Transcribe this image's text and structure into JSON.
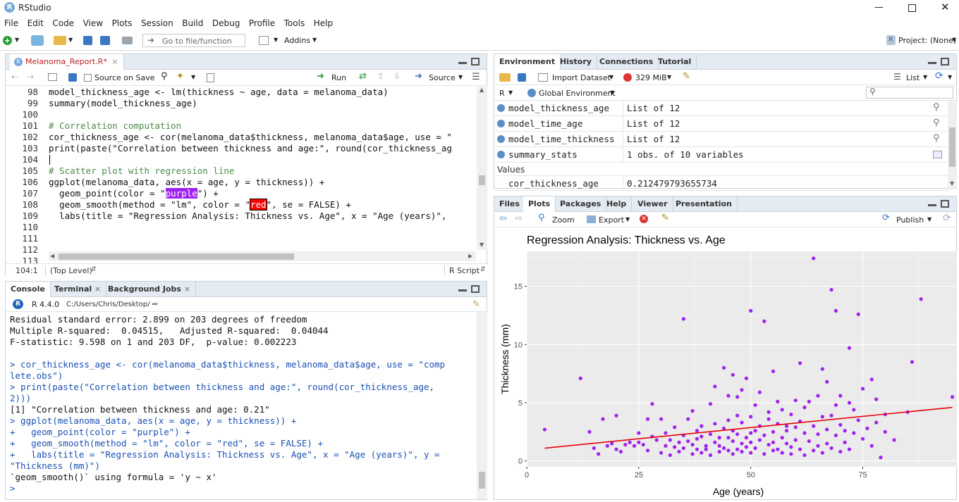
{
  "window": {
    "title": "RStudio"
  },
  "menu": [
    "File",
    "Edit",
    "Code",
    "View",
    "Plots",
    "Session",
    "Build",
    "Debug",
    "Profile",
    "Tools",
    "Help"
  ],
  "toolbar": {
    "goto_placeholder": "Go to file/function",
    "addins": "Addins",
    "project": "Project: (None)"
  },
  "editor": {
    "tab": "Melanoma_Report.R*",
    "source_on_save": "Source on Save",
    "run": "Run",
    "source": "Source",
    "cursor_pos": "104:1",
    "scope": "(Top Level)",
    "filetype": "R Script",
    "line_numbers": [
      "98",
      "99",
      "100",
      "101",
      "102",
      "103",
      "104",
      "105",
      "106",
      "107",
      "108",
      "109",
      "110",
      "111",
      "112",
      "113"
    ],
    "code": {
      "l98": "model_thickness_age <- lm(thickness ~ age, data = melanoma_data)",
      "l99": "summary(model_thickness_age)",
      "l101": "# Correlation computation",
      "l102": "cor_thickness_age <- cor(melanoma_data$thickness, melanoma_data$age, use = \"",
      "l103": "print(paste(\"Correlation between thickness and age:\", round(cor_thickness_ag",
      "l105": "# Scatter plot with regression line",
      "l106": "ggplot(melanoma_data, aes(x = age, y = thickness)) +",
      "l107a": "  geom_point(color = \"",
      "l107b": "purple",
      "l107c": "\") +",
      "l108a": "  geom_smooth(method = \"lm\", color = \"",
      "l108b": "red",
      "l108c": "\", se = FALSE) +",
      "l109": "  labs(title = \"Regression Analysis: Thickness vs. Age\", x = \"Age (years)\","
    }
  },
  "console": {
    "tabs": [
      "Console",
      "Terminal",
      "Background Jobs"
    ],
    "version": "R 4.4.0",
    "path": "C:/Users/Chris/Desktop/",
    "lines": [
      "Residual standard error: 2.899 on 203 degrees of freedom",
      "Multiple R-squared:  0.04515,\tAdjusted R-squared:  0.04044 ",
      "F-statistic: 9.598 on 1 and 203 DF,  p-value: 0.002223",
      "",
      "> cor_thickness_age <- cor(melanoma_data$thickness, melanoma_data$age, use = \"comp",
      "lete.obs\")",
      "> print(paste(\"Correlation between thickness and age:\", round(cor_thickness_age, ",
      "2)))",
      "[1] \"Correlation between thickness and age: 0.21\"",
      "> ggplot(melanoma_data, aes(x = age, y = thickness)) +",
      "+   geom_point(color = \"purple\") +",
      "+   geom_smooth(method = \"lm\", color = \"red\", se = FALSE) +",
      "+   labs(title = \"Regression Analysis: Thickness vs. Age\", x = \"Age (years)\", y = ",
      "\"Thickness (mm)\")",
      "`geom_smooth()` using formula = 'y ~ x'",
      "> "
    ]
  },
  "environment": {
    "tabs": [
      "Environment",
      "History",
      "Connections",
      "Tutorial"
    ],
    "import_dataset": "Import Dataset",
    "memory": "329 MiB",
    "list_view": "List",
    "language": "R",
    "scope": "Global Environment",
    "rows": [
      {
        "name": "model_thickness_age",
        "value": "List of  12"
      },
      {
        "name": "model_time_age",
        "value": "List of  12"
      },
      {
        "name": "model_time_thickness",
        "value": "List of  12"
      },
      {
        "name": "summary_stats",
        "value": "1 obs. of 10 variables"
      }
    ],
    "values_header": "Values",
    "values": [
      {
        "name": "cor_thickness_age",
        "value": "0.212479793655734"
      }
    ]
  },
  "files": {
    "tabs": [
      "Files",
      "Plots",
      "Packages",
      "Help",
      "Viewer",
      "Presentation"
    ],
    "zoom": "Zoom",
    "export": "Export",
    "publish": "Publish"
  },
  "chart_data": {
    "type": "scatter",
    "title": "Regression Analysis: Thickness vs. Age",
    "xlabel": "Age (years)",
    "ylabel": "Thickness (mm)",
    "xlim": [
      0,
      96
    ],
    "ylim": [
      -0.5,
      18
    ],
    "xticks": [
      0,
      25,
      50,
      75
    ],
    "yticks": [
      0,
      5,
      10,
      15
    ],
    "grid": true,
    "point_color": "#a020f0",
    "line_color": "#e8000b",
    "regression": {
      "x": [
        4,
        95
      ],
      "y": [
        1.1,
        4.6
      ]
    },
    "points": [
      [
        4,
        2.7
      ],
      [
        12,
        7.1
      ],
      [
        14,
        2.5
      ],
      [
        15,
        1.1
      ],
      [
        16,
        0.6
      ],
      [
        17,
        3.6
      ],
      [
        18,
        1.3
      ],
      [
        19,
        1.5
      ],
      [
        20,
        1.0
      ],
      [
        20,
        3.9
      ],
      [
        21,
        0.8
      ],
      [
        22,
        1.4
      ],
      [
        23,
        1.6
      ],
      [
        24,
        1.3
      ],
      [
        25,
        1.6
      ],
      [
        25,
        2.4
      ],
      [
        26,
        1.4
      ],
      [
        27,
        3.6
      ],
      [
        27,
        0.9
      ],
      [
        28,
        4.9
      ],
      [
        28,
        2.1
      ],
      [
        29,
        1.8
      ],
      [
        30,
        3.6
      ],
      [
        30,
        0.7
      ],
      [
        31,
        2.4
      ],
      [
        31,
        1.3
      ],
      [
        32,
        1.8
      ],
      [
        32,
        0.5
      ],
      [
        33,
        2.9
      ],
      [
        33,
        1.2
      ],
      [
        34,
        1.6
      ],
      [
        34,
        0.8
      ],
      [
        35,
        12.2
      ],
      [
        35,
        1.1
      ],
      [
        35,
        2.2
      ],
      [
        36,
        3.6
      ],
      [
        36,
        1.7
      ],
      [
        37,
        4.3
      ],
      [
        37,
        0.6
      ],
      [
        37,
        1.4
      ],
      [
        38,
        2.6
      ],
      [
        38,
        1.9
      ],
      [
        38,
        1.0
      ],
      [
        39,
        0.7
      ],
      [
        39,
        2.1
      ],
      [
        39,
        3.0
      ],
      [
        40,
        1.0
      ],
      [
        40,
        1.3
      ],
      [
        41,
        4.9
      ],
      [
        41,
        2.3
      ],
      [
        41,
        0.5
      ],
      [
        42,
        6.4
      ],
      [
        42,
        1.6
      ],
      [
        42,
        3.2
      ],
      [
        43,
        2.0
      ],
      [
        43,
        0.8
      ],
      [
        43,
        1.3
      ],
      [
        44,
        8.0
      ],
      [
        44,
        2.8
      ],
      [
        44,
        1.1
      ],
      [
        45,
        3.5
      ],
      [
        45,
        5.6
      ],
      [
        45,
        0.9
      ],
      [
        45,
        2.0
      ],
      [
        46,
        7.4
      ],
      [
        46,
        2.6
      ],
      [
        46,
        1.7
      ],
      [
        46,
        0.6
      ],
      [
        47,
        5.5
      ],
      [
        47,
        3.9
      ],
      [
        47,
        1.0
      ],
      [
        47,
        2.3
      ],
      [
        48,
        6.1
      ],
      [
        48,
        1.5
      ],
      [
        48,
        0.8
      ],
      [
        48,
        3.3
      ],
      [
        49,
        7.1
      ],
      [
        49,
        2.0
      ],
      [
        49,
        1.2
      ],
      [
        50,
        12.9
      ],
      [
        50,
        3.8
      ],
      [
        50,
        2.4
      ],
      [
        50,
        1.6
      ],
      [
        50,
        0.7
      ],
      [
        51,
        4.8
      ],
      [
        51,
        2.6
      ],
      [
        51,
        1.1
      ],
      [
        52,
        5.9
      ],
      [
        52,
        3.0
      ],
      [
        52,
        1.8
      ],
      [
        53,
        12.0
      ],
      [
        53,
        0.6
      ],
      [
        53,
        2.2
      ],
      [
        54,
        4.2
      ],
      [
        54,
        1.4
      ],
      [
        54,
        3.6
      ],
      [
        55,
        7.7
      ],
      [
        55,
        2.5
      ],
      [
        55,
        0.9
      ],
      [
        55,
        1.6
      ],
      [
        56,
        5.1
      ],
      [
        56,
        3.2
      ],
      [
        56,
        1.0
      ],
      [
        57,
        2.0
      ],
      [
        57,
        4.4
      ],
      [
        57,
        0.7
      ],
      [
        58,
        3.0
      ],
      [
        58,
        1.5
      ],
      [
        58,
        2.6
      ],
      [
        59,
        4.0
      ],
      [
        59,
        1.2
      ],
      [
        59,
        0.6
      ],
      [
        60,
        5.2
      ],
      [
        60,
        2.9
      ],
      [
        60,
        1.8
      ],
      [
        61,
        8.4
      ],
      [
        61,
        3.4
      ],
      [
        61,
        1.0
      ],
      [
        62,
        2.4
      ],
      [
        62,
        0.5
      ],
      [
        62,
        4.6
      ],
      [
        63,
        5.1
      ],
      [
        63,
        1.7
      ],
      [
        64,
        17.4
      ],
      [
        64,
        3.0
      ],
      [
        64,
        0.9
      ],
      [
        65,
        5.6
      ],
      [
        65,
        2.3
      ],
      [
        65,
        1.3
      ],
      [
        66,
        7.9
      ],
      [
        66,
        3.8
      ],
      [
        66,
        0.7
      ],
      [
        67,
        6.8
      ],
      [
        67,
        2.7
      ],
      [
        67,
        1.5
      ],
      [
        68,
        14.7
      ],
      [
        68,
        3.9
      ],
      [
        68,
        1.1
      ],
      [
        69,
        12.9
      ],
      [
        69,
        4.8
      ],
      [
        69,
        2.2
      ],
      [
        70,
        5.6
      ],
      [
        70,
        3.1
      ],
      [
        70,
        0.8
      ],
      [
        71,
        2.6
      ],
      [
        71,
        1.6
      ],
      [
        72,
        9.7
      ],
      [
        72,
        5.0
      ],
      [
        72,
        1.0
      ],
      [
        73,
        4.4
      ],
      [
        73,
        2.4
      ],
      [
        74,
        12.6
      ],
      [
        74,
        3.5
      ],
      [
        75,
        6.2
      ],
      [
        75,
        1.9
      ],
      [
        76,
        2.8
      ],
      [
        77,
        7.0
      ],
      [
        77,
        1.3
      ],
      [
        78,
        5.3
      ],
      [
        78,
        3.3
      ],
      [
        79,
        0.3
      ],
      [
        80,
        2.5
      ],
      [
        80,
        4.0
      ],
      [
        82,
        1.8
      ],
      [
        85,
        4.2
      ],
      [
        86,
        8.5
      ],
      [
        88,
        13.9
      ],
      [
        95,
        5.5
      ]
    ]
  }
}
